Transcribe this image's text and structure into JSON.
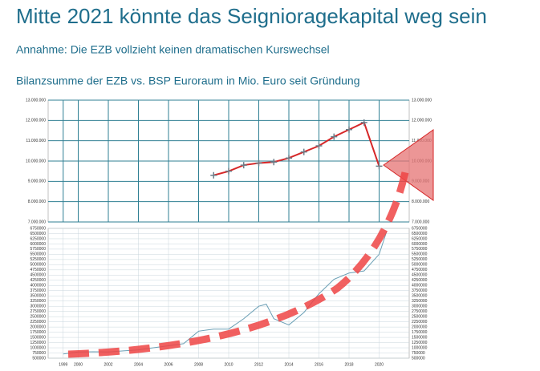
{
  "title": "Mitte 2021 könnte das Seigniorage­kapital weg sein",
  "subtitle": "Annahme: Die EZB vollzieht keinen dramatischen Kurswechsel",
  "chart_data": [
    {
      "type": "line",
      "title": "Bilanzsumme der EZB vs. BSP Euroraum in Mio. Euro seit Gründung",
      "xlim": [
        1998,
        2022
      ],
      "ylim": [
        7000000,
        13000000
      ],
      "yticks": [
        {
          "value": 7000000,
          "label": "7.000.000"
        },
        {
          "value": 8000000,
          "label": "8.000.000"
        },
        {
          "value": 9000000,
          "label": "9.000.000"
        },
        {
          "value": 10000000,
          "label": "10.000.000"
        },
        {
          "value": 11000000,
          "label": "11.000.000"
        },
        {
          "value": 12000000,
          "label": "12.000.000"
        },
        {
          "value": 13000000,
          "label": "13.000.000"
        }
      ],
      "grid": true,
      "series": [
        {
          "color": "#d62728",
          "x": [
            2009,
            2010,
            2011,
            2012,
            2013,
            2014,
            2015,
            2016,
            2017,
            2018,
            2019,
            2020
          ],
          "values": [
            9300000,
            9500000,
            9800000,
            9900000,
            9950000,
            10150000,
            10450000,
            10750000,
            11200000,
            11550000,
            11900000,
            9750000
          ]
        }
      ]
    },
    {
      "type": "line",
      "xlim": [
        1998,
        2022
      ],
      "xticks": [
        1999,
        2000,
        2002,
        2004,
        2006,
        2008,
        2010,
        2012,
        2014,
        2016,
        2018,
        2020
      ],
      "ylim": [
        500000,
        6750000
      ],
      "yticks": [
        500000,
        750000,
        1000000,
        1250000,
        1500000,
        1750000,
        2000000,
        2250000,
        2500000,
        2750000,
        3000000,
        3250000,
        3500000,
        3750000,
        4000000,
        4250000,
        4500000,
        4750000,
        5000000,
        5250000,
        5500000,
        5750000,
        6000000,
        6250000,
        6500000,
        6750000
      ],
      "grid": true,
      "series": [
        {
          "color": "#6a9fb5",
          "x": [
            1999,
            2000,
            2001,
            2002,
            2003,
            2004,
            2005,
            2006,
            2007,
            2008,
            2009,
            2010,
            2011,
            2012,
            2012.5,
            2013,
            2014,
            2015,
            2016,
            2017,
            2018,
            2019,
            2020,
            2020.5
          ],
          "values": [
            700000,
            800000,
            810000,
            800000,
            850000,
            900000,
            1000000,
            1100000,
            1200000,
            1800000,
            1900000,
            1900000,
            2400000,
            3000000,
            3100000,
            2400000,
            2100000,
            2700000,
            3600000,
            4300000,
            4600000,
            4700000,
            5500000,
            6600000
          ]
        }
      ]
    }
  ]
}
